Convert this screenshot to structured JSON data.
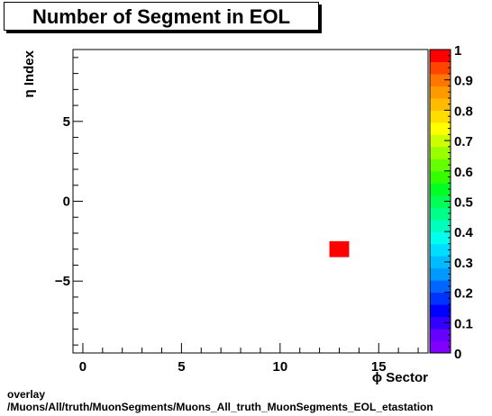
{
  "chart_data": {
    "type": "heatmap",
    "title": "Number of Segment in EOL",
    "xlabel": "ϕ Sector",
    "ylabel": "η Index",
    "xlim": [
      -0.5,
      17.5
    ],
    "ylim": [
      -9.5,
      9.5
    ],
    "x_ticks": [
      0,
      5,
      10,
      15
    ],
    "y_ticks": [
      -5,
      0,
      5
    ],
    "y_tick_labels": [
      "−5",
      "0",
      "5"
    ],
    "cells": [
      {
        "x": 13,
        "y": -3,
        "value": 1
      }
    ],
    "colorbar": {
      "range": [
        0,
        1
      ],
      "ticks": [
        0,
        0.1,
        0.2,
        0.3,
        0.4,
        0.5,
        0.6,
        0.7,
        0.8,
        0.9,
        1
      ],
      "tick_labels": [
        "0",
        "0.1",
        "0.2",
        "0.3",
        "0.4",
        "0.5",
        "0.6",
        "0.7",
        "0.8",
        "0.9",
        "1"
      ],
      "colors": [
        "#7f00ff",
        "#6600ff",
        "#3300ff",
        "#0000ff",
        "#0033ff",
        "#0066ff",
        "#0099ff",
        "#00bbff",
        "#00ddff",
        "#00ffee",
        "#00ffbb",
        "#00ff88",
        "#00ff55",
        "#00ff22",
        "#33ff00",
        "#66ff00",
        "#99ff00",
        "#ccff00",
        "#ffff00",
        "#ffdd00",
        "#ffbb00",
        "#ff9900",
        "#ff7700",
        "#ff4400",
        "#ff0000"
      ]
    }
  },
  "footer": {
    "line1": "overlay",
    "line2": "/Muons/All/truth/MuonSegments/Muons_All_truth_MuonSegments_EOL_etastation"
  }
}
